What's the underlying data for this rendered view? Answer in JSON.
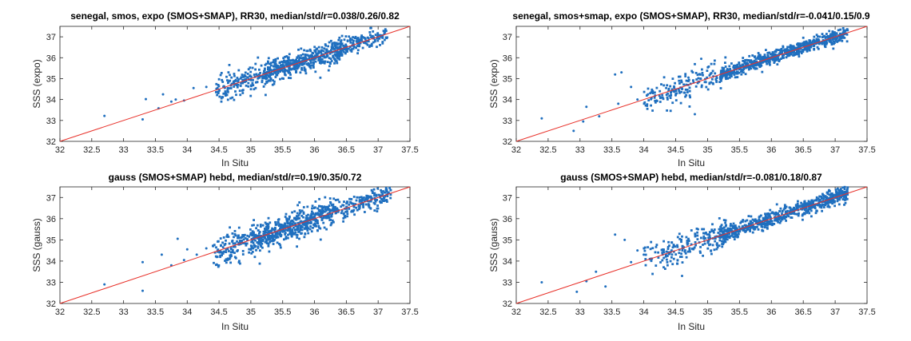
{
  "figure": {
    "background": "#ffffff",
    "marker_color": "#1f6fbf",
    "identity_line_color": "#e8322b"
  },
  "chart_data": [
    {
      "type": "scatter",
      "title": "senegal, smos, expo (SMOS+SMAP), RR30, median/std/r=0.038/0.26/0.82",
      "xlabel": "In Situ",
      "ylabel": "SSS (expo)",
      "xlim": [
        32,
        37.5
      ],
      "ylim": [
        32,
        37.5
      ],
      "xticks": [
        "32",
        "32.5",
        "33",
        "33.5",
        "34",
        "34.5",
        "35",
        "35.5",
        "36",
        "36.5",
        "37",
        "37.5"
      ],
      "yticks": [
        "32",
        "33",
        "34",
        "35",
        "36",
        "37"
      ],
      "grid": false,
      "reference_line": "y = x",
      "stats": {
        "median": 0.038,
        "std": 0.26,
        "r": 0.82
      },
      "points": [
        [
          32.7,
          33.22
        ],
        [
          33.3,
          33.05
        ],
        [
          33.35,
          34.02
        ],
        [
          33.55,
          33.58
        ],
        [
          33.62,
          34.25
        ],
        [
          33.75,
          33.9
        ],
        [
          33.82,
          34.0
        ],
        [
          33.95,
          33.95
        ],
        [
          34.1,
          34.55
        ],
        [
          34.3,
          34.6
        ]
      ],
      "dense_clouds": [
        {
          "x": [
            34.45,
            36.4
          ],
          "spread": 0.3,
          "n": 380
        },
        {
          "x": [
            35.2,
            37.15
          ],
          "spread": 0.22,
          "n": 420
        }
      ]
    },
    {
      "type": "scatter",
      "title": "senegal, smos+smap, expo (SMOS+SMAP), RR30, median/std/r=-0.041/0.15/0.9",
      "xlabel": "In Situ",
      "ylabel": "SSS (expo)",
      "xlim": [
        32,
        37.5
      ],
      "ylim": [
        32,
        37.5
      ],
      "xticks": [
        "32",
        "32.5",
        "33",
        "33.5",
        "34",
        "34.5",
        "35",
        "35.5",
        "36",
        "36.5",
        "37",
        "37.5"
      ],
      "yticks": [
        "32",
        "33",
        "34",
        "35",
        "36",
        "37"
      ],
      "grid": false,
      "reference_line": "y = x",
      "stats": {
        "median": -0.041,
        "std": 0.15,
        "r": 0.9
      },
      "points": [
        [
          32.4,
          33.1
        ],
        [
          32.9,
          32.5
        ],
        [
          33.05,
          32.95
        ],
        [
          33.1,
          33.65
        ],
        [
          33.3,
          33.2
        ],
        [
          33.55,
          35.2
        ],
        [
          33.65,
          35.3
        ],
        [
          33.6,
          33.8
        ],
        [
          33.8,
          34.6
        ],
        [
          33.9,
          34.0
        ],
        [
          34.1,
          34.3
        ],
        [
          34.2,
          33.95
        ],
        [
          34.35,
          34.55
        ],
        [
          34.5,
          34.2
        ],
        [
          34.7,
          35.05
        ],
        [
          34.8,
          33.3
        ],
        [
          34.9,
          35.95
        ]
      ],
      "dense_clouds": [
        {
          "x": [
            34.0,
            35.3
          ],
          "spread": 0.35,
          "n": 180
        },
        {
          "x": [
            35.2,
            37.2
          ],
          "spread": 0.17,
          "n": 650
        }
      ]
    },
    {
      "type": "scatter",
      "title": "gauss (SMOS+SMAP) hebd, median/std/r=0.19/0.35/0.72",
      "xlabel": "In Situ",
      "ylabel": "SSS (gauss)",
      "xlim": [
        32,
        37.5
      ],
      "ylim": [
        32,
        37.5
      ],
      "xticks": [
        "32",
        "32.5",
        "33",
        "33.5",
        "34",
        "34.5",
        "35",
        "35.5",
        "36",
        "36.5",
        "37",
        "37.5"
      ],
      "yticks": [
        "32",
        "33",
        "34",
        "35",
        "36",
        "37"
      ],
      "grid": false,
      "reference_line": "y = x",
      "stats": {
        "median": 0.19,
        "std": 0.35,
        "r": 0.72
      },
      "points": [
        [
          32.7,
          32.9
        ],
        [
          33.3,
          33.95
        ],
        [
          33.3,
          32.6
        ],
        [
          33.6,
          34.3
        ],
        [
          33.75,
          33.8
        ],
        [
          33.85,
          35.05
        ],
        [
          33.95,
          34.05
        ],
        [
          34.0,
          34.55
        ],
        [
          34.15,
          34.3
        ],
        [
          34.3,
          34.6
        ]
      ],
      "dense_clouds": [
        {
          "x": [
            34.4,
            36.3
          ],
          "spread": 0.38,
          "n": 420
        },
        {
          "x": [
            35.0,
            37.2
          ],
          "spread": 0.25,
          "n": 450
        }
      ]
    },
    {
      "type": "scatter",
      "title": "gauss (SMOS+SMAP) hebd, median/std/r=-0.081/0.18/0.87",
      "xlabel": "In Situ",
      "ylabel": "SSS (gauss)",
      "xlim": [
        32,
        37.5
      ],
      "ylim": [
        32,
        37.5
      ],
      "xticks": [
        "32",
        "32.5",
        "33",
        "33.5",
        "34",
        "34.5",
        "35",
        "35.5",
        "36",
        "36.5",
        "37",
        "37.5"
      ],
      "yticks": [
        "32",
        "33",
        "34",
        "35",
        "36",
        "37"
      ],
      "grid": false,
      "reference_line": "y = x",
      "stats": {
        "median": -0.081,
        "std": 0.18,
        "r": 0.87
      },
      "points": [
        [
          32.4,
          33.0
        ],
        [
          32.95,
          32.55
        ],
        [
          33.1,
          33.05
        ],
        [
          33.25,
          33.5
        ],
        [
          33.4,
          32.8
        ],
        [
          33.55,
          35.25
        ],
        [
          33.7,
          35.0
        ],
        [
          33.8,
          33.95
        ],
        [
          33.9,
          34.5
        ],
        [
          34.0,
          34.3
        ],
        [
          34.3,
          34.5
        ],
        [
          34.6,
          33.3
        ],
        [
          34.85,
          35.5
        ],
        [
          34.95,
          34.95
        ]
      ],
      "dense_clouds": [
        {
          "x": [
            34.0,
            35.3
          ],
          "spread": 0.35,
          "n": 200
        },
        {
          "x": [
            35.2,
            37.2
          ],
          "spread": 0.18,
          "n": 650
        }
      ]
    }
  ]
}
